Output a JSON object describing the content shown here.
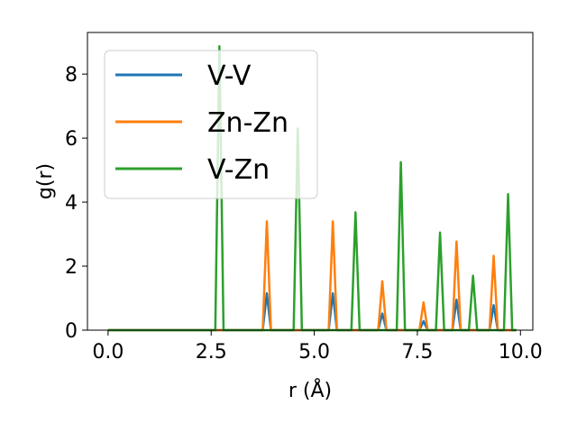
{
  "chart_data": {
    "type": "line",
    "title": "",
    "xlabel": "r (Å)",
    "ylabel": "g(r)",
    "xlim": [
      -0.5,
      10.3
    ],
    "ylim": [
      0,
      9.3
    ],
    "xticks": [
      0.0,
      2.5,
      5.0,
      7.5,
      10.0
    ],
    "xtick_labels": [
      "0.0",
      "2.5",
      "5.0",
      "7.5",
      "10.0"
    ],
    "yticks": [
      0,
      2,
      4,
      6,
      8
    ],
    "ytick_labels": [
      "0",
      "2",
      "4",
      "6",
      "8"
    ],
    "grid": false,
    "legend_position": "upper-left",
    "series": [
      {
        "name": "V-V",
        "color": "#1f77b4",
        "x": [
          0.0,
          3.75,
          3.85,
          3.95,
          5.35,
          5.45,
          5.55,
          6.55,
          6.65,
          6.75,
          7.55,
          7.65,
          7.75,
          8.35,
          8.45,
          8.55,
          9.25,
          9.35,
          9.45,
          9.9
        ],
        "y": [
          0,
          0,
          1.15,
          0,
          0,
          1.15,
          0,
          0,
          0.52,
          0,
          0,
          0.28,
          0,
          0,
          0.95,
          0,
          0,
          0.78,
          0,
          0
        ]
      },
      {
        "name": "Zn-Zn",
        "color": "#ff7f0e",
        "x": [
          0.0,
          3.75,
          3.85,
          3.95,
          5.35,
          5.45,
          5.55,
          6.55,
          6.65,
          6.75,
          7.55,
          7.65,
          7.75,
          8.35,
          8.45,
          8.55,
          9.25,
          9.35,
          9.45,
          9.9
        ],
        "y": [
          0,
          0,
          3.4,
          0,
          0,
          3.4,
          0,
          0,
          1.53,
          0,
          0,
          0.87,
          0,
          0,
          2.77,
          0,
          0,
          2.32,
          0,
          0
        ]
      },
      {
        "name": "V-Zn",
        "color": "#2ca02c",
        "x": [
          0.0,
          2.6,
          2.7,
          2.8,
          4.5,
          4.6,
          4.7,
          5.9,
          6.0,
          6.1,
          7.0,
          7.1,
          7.2,
          7.95,
          8.05,
          8.15,
          8.75,
          8.85,
          8.95,
          9.6,
          9.7,
          9.8,
          9.9
        ],
        "y": [
          0,
          0,
          8.87,
          0,
          0,
          6.3,
          0,
          0,
          3.68,
          0,
          0,
          5.25,
          0,
          0,
          3.05,
          0,
          0,
          1.7,
          0,
          0,
          4.25,
          0,
          0
        ]
      }
    ]
  }
}
